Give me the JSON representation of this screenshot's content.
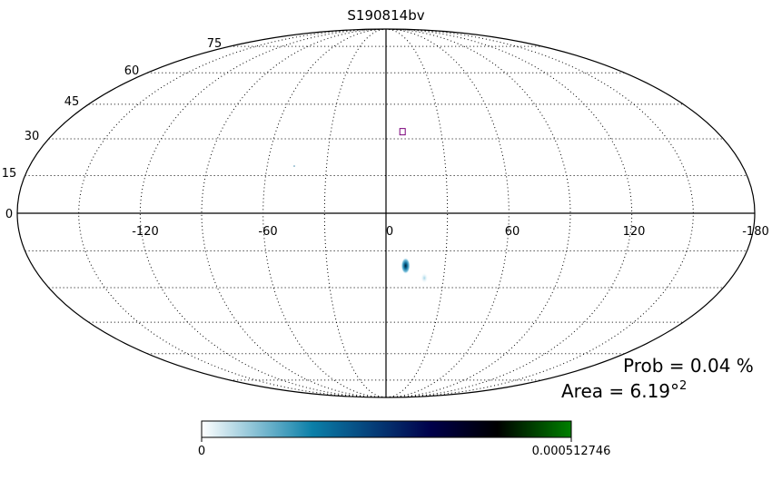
{
  "chart_data": {
    "type": "skymap",
    "projection": "mollweide",
    "title": "S190814bv",
    "lon_ticks": [
      "-120",
      "-60",
      "0",
      "60",
      "120",
      "-180"
    ],
    "lat_ticks": [
      "0",
      "15",
      "30",
      "45",
      "60",
      "75"
    ],
    "grid": true,
    "probability_label": "Prob = 0.04 %",
    "area_label": "Area = 6.19°",
    "area_exponent": "2",
    "colorbar": {
      "min_label": "0",
      "max_label": "0.000512746",
      "colors": [
        "#ffffff",
        "#0b7fa8",
        "#00004a",
        "#000000",
        "#008000"
      ]
    },
    "hotspots": [
      {
        "name": "primary-probability-blob",
        "lon": 10,
        "lat": -21,
        "intensity": 1.0
      },
      {
        "name": "secondary-probability-blob",
        "lon": 20,
        "lat": -26,
        "intensity": 0.25
      }
    ],
    "markers": [
      {
        "name": "pointing-square-marker",
        "lon": 9,
        "lat": 33,
        "color": "#7a007a"
      }
    ]
  }
}
